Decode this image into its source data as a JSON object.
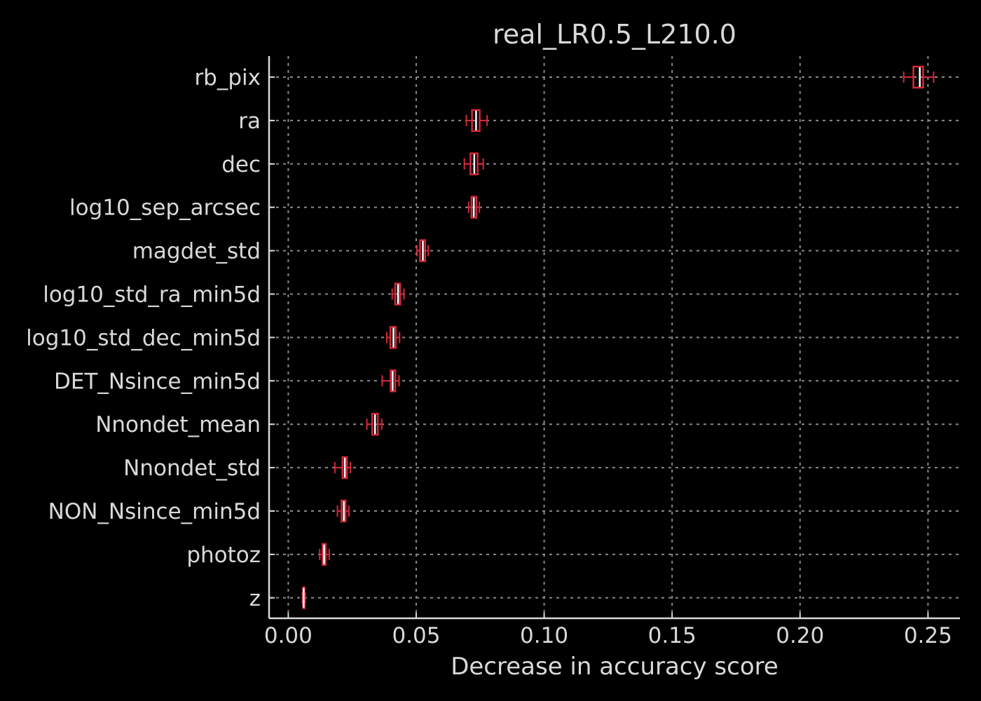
{
  "chart_data": {
    "type": "boxplot",
    "orientation": "horizontal",
    "title": "real_LR0.5_L210.0",
    "xlabel": "Decrease in accuracy score",
    "ylabel": "",
    "xlim": [
      -0.0075,
      0.2625
    ],
    "xticks": [
      0.0,
      0.05,
      0.1,
      0.15,
      0.2,
      0.25
    ],
    "xtick_labels": [
      "0.00",
      "0.05",
      "0.10",
      "0.15",
      "0.20",
      "0.25"
    ],
    "grid": true,
    "grid_style": "dotted",
    "categories": [
      "rb_pix",
      "ra",
      "dec",
      "log10_sep_arcsec",
      "magdet_std",
      "log10_std_ra_min5d",
      "log10_std_dec_min5d",
      "DET_Nsince_min5d",
      "Nnondet_mean",
      "Nnondet_std",
      "NON_Nsince_min5d",
      "photoz",
      "z"
    ],
    "boxes": [
      {
        "whislo": 0.2405,
        "q1": 0.2443,
        "med": 0.2468,
        "q3": 0.2481,
        "whishi": 0.2522
      },
      {
        "whislo": 0.0696,
        "q1": 0.0718,
        "med": 0.0734,
        "q3": 0.0748,
        "whishi": 0.0777
      },
      {
        "whislo": 0.0688,
        "q1": 0.0712,
        "med": 0.0727,
        "q3": 0.074,
        "whishi": 0.0762
      },
      {
        "whislo": 0.0705,
        "q1": 0.0716,
        "med": 0.0725,
        "q3": 0.0735,
        "whishi": 0.0747
      },
      {
        "whislo": 0.0503,
        "q1": 0.0515,
        "med": 0.0526,
        "q3": 0.0535,
        "whishi": 0.0547
      },
      {
        "whislo": 0.0406,
        "q1": 0.0418,
        "med": 0.0429,
        "q3": 0.0437,
        "whishi": 0.0452
      },
      {
        "whislo": 0.0385,
        "q1": 0.0399,
        "med": 0.0411,
        "q3": 0.042,
        "whishi": 0.0435
      },
      {
        "whislo": 0.0367,
        "q1": 0.04,
        "med": 0.0408,
        "q3": 0.0418,
        "whishi": 0.0433
      },
      {
        "whislo": 0.0307,
        "q1": 0.0328,
        "med": 0.0339,
        "q3": 0.035,
        "whishi": 0.0365
      },
      {
        "whislo": 0.0182,
        "q1": 0.0212,
        "med": 0.0221,
        "q3": 0.0229,
        "whishi": 0.0243
      },
      {
        "whislo": 0.0192,
        "q1": 0.0208,
        "med": 0.0217,
        "q3": 0.0224,
        "whishi": 0.0237
      },
      {
        "whislo": 0.0123,
        "q1": 0.0134,
        "med": 0.014,
        "q3": 0.0146,
        "whishi": 0.016
      },
      {
        "whislo": 0.0055,
        "q1": 0.0058,
        "med": 0.006,
        "q3": 0.0063,
        "whishi": 0.0066
      }
    ],
    "colors": {
      "background": "#000000",
      "box": "#d62839",
      "median": "#ffffff",
      "grid": "#8a8a8a",
      "axis": "#d9d9d9",
      "text": "#d9d9d9"
    }
  }
}
